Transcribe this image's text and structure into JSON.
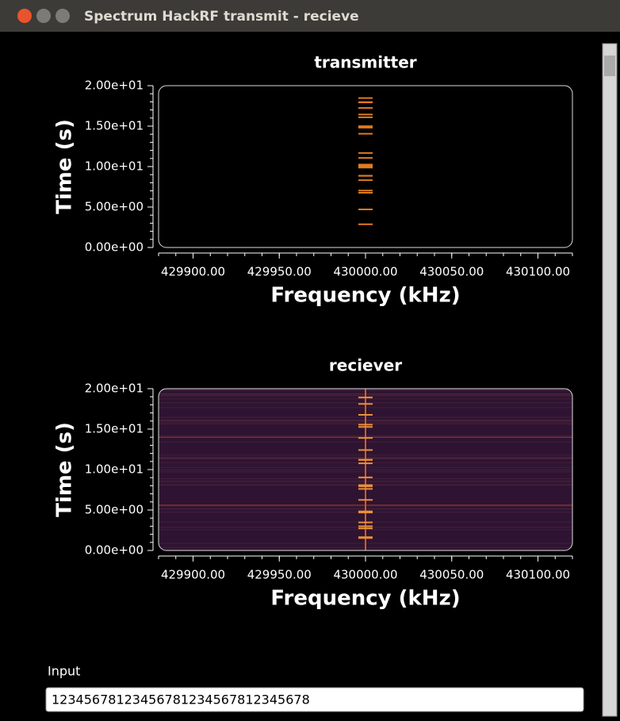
{
  "window": {
    "title": "Spectrum HackRF transmit - recieve"
  },
  "chart_data": [
    {
      "type": "waterfall",
      "title": "transmitter",
      "xlabel": "Frequency (kHz)",
      "ylabel": "Time (s)",
      "xlim": [
        429880,
        430120
      ],
      "ylim": [
        0,
        20
      ],
      "xticks": [
        {
          "value": 429900,
          "label": "429900.00"
        },
        {
          "value": 429950,
          "label": "429950.00"
        },
        {
          "value": 430000,
          "label": "430000.00"
        },
        {
          "value": 430050,
          "label": "430050.00"
        },
        {
          "value": 430100,
          "label": "430100.00"
        }
      ],
      "yticks": [
        {
          "value": 0,
          "label": "0.00e+00"
        },
        {
          "value": 5,
          "label": "5.00e+00"
        },
        {
          "value": 10,
          "label": "1.00e+01"
        },
        {
          "value": 15,
          "label": "1.50e+01"
        },
        {
          "value": 20,
          "label": "2.00e+01"
        }
      ]
    },
    {
      "type": "waterfall",
      "title": "reciever",
      "xlabel": "Frequency (kHz)",
      "ylabel": "Time (s)",
      "xlim": [
        429880,
        430120
      ],
      "ylim": [
        0,
        20
      ],
      "xticks": [
        {
          "value": 429900,
          "label": "429900.00"
        },
        {
          "value": 429950,
          "label": "429950.00"
        },
        {
          "value": 430000,
          "label": "430000.00"
        },
        {
          "value": 430050,
          "label": "430050.00"
        },
        {
          "value": 430100,
          "label": "430100.00"
        }
      ],
      "yticks": [
        {
          "value": 0,
          "label": "0.00e+00"
        },
        {
          "value": 5,
          "label": "5.00e+00"
        },
        {
          "value": 10,
          "label": "1.00e+01"
        },
        {
          "value": 15,
          "label": "1.50e+01"
        },
        {
          "value": 20,
          "label": "2.00e+01"
        }
      ]
    }
  ],
  "input": {
    "label": "Input",
    "value": "12345678123456781234567812345678"
  }
}
